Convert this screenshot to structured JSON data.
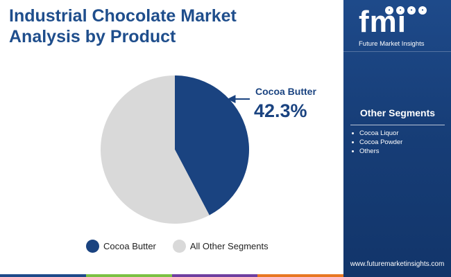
{
  "title": {
    "line1": "Industrial Chocolate Market",
    "line2": "Analysis by Product"
  },
  "chart_data": {
    "type": "pie",
    "title": "Industrial Chocolate Market Analysis by Product",
    "slices": [
      {
        "label": "Cocoa Butter",
        "value": 42.3,
        "color": "#1a4380"
      },
      {
        "label": "All Other Segments",
        "value": 57.7,
        "color": "#d9d9d9"
      }
    ],
    "callout": {
      "label": "Cocoa Butter",
      "value_text": "42.3%"
    },
    "legend_position": "bottom"
  },
  "legend": [
    {
      "label": "Cocoa Butter",
      "color": "#1a4380"
    },
    {
      "label": "All Other Segments",
      "color": "#d9d9d9"
    }
  ],
  "side_panel": {
    "logo": {
      "mark": "fmi",
      "name": "Future Market Insights"
    },
    "segments_title": "Other Segments",
    "segments": [
      "Cocoa Liquor",
      "Cocoa Powder",
      "Others"
    ],
    "website": "www.futuremarketinsights.com"
  },
  "bottom_bar_colors": [
    "#1e4a8a",
    "#7bc143",
    "#6f3fa0",
    "#e87722"
  ]
}
